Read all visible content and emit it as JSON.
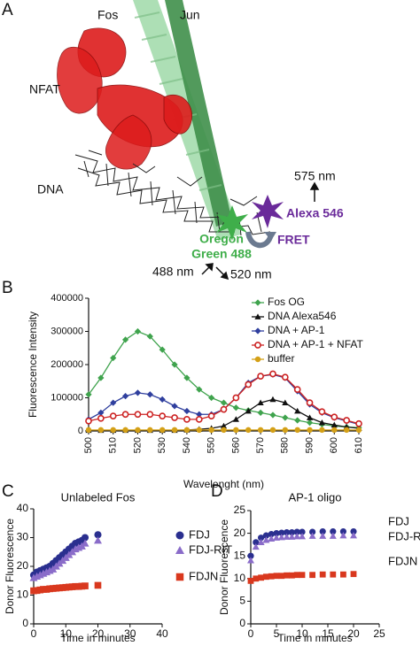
{
  "panel_labels": [
    "A",
    "B",
    "C",
    "D"
  ],
  "panel_a": {
    "fos": "Fos",
    "jun": "Jun",
    "nfat": "NFAT",
    "dna": "DNA",
    "emission_acceptor": "575 nm",
    "acceptor": "Alexa 546",
    "donor_line1": "Oregon",
    "donor_line2": "Green 488",
    "fret": "FRET",
    "excitation": "488 nm",
    "emission_donor": "520 nm"
  },
  "chart_data": [
    {
      "type": "line",
      "xlabel": "Wavelenght (nm)",
      "ylabel": "Fluorescence Intensity",
      "x": [
        500,
        505,
        510,
        515,
        520,
        525,
        530,
        535,
        540,
        545,
        550,
        555,
        560,
        565,
        570,
        575,
        580,
        585,
        590,
        595,
        600,
        605,
        610
      ],
      "xlim": [
        500,
        610
      ],
      "xticks": [
        500,
        510,
        520,
        530,
        540,
        550,
        560,
        570,
        580,
        590,
        600,
        610
      ],
      "ylim": [
        0,
        400000
      ],
      "yticks": [
        0,
        100000,
        200000,
        300000,
        400000
      ],
      "legend": "upper-right",
      "series": [
        {
          "name": "Fos OG",
          "color": "#3fa34d",
          "marker": "diamond",
          "values": [
            110000,
            160000,
            220000,
            275000,
            300000,
            285000,
            245000,
            200000,
            160000,
            125000,
            100000,
            85000,
            70000,
            62000,
            55000,
            48000,
            40000,
            32000,
            25000,
            20000,
            15000,
            12000,
            10000
          ]
        },
        {
          "name": "DNA Alexa546",
          "color": "#111111",
          "marker": "triangle",
          "values": [
            2000,
            2000,
            2000,
            2000,
            2000,
            2000,
            2000,
            2000,
            3000,
            5000,
            8000,
            15000,
            35000,
            60000,
            85000,
            95000,
            85000,
            60000,
            40000,
            25000,
            18000,
            12000,
            8000
          ]
        },
        {
          "name": "DNA + AP-1",
          "color": "#2f3f9e",
          "marker": "diamond",
          "values": [
            35000,
            55000,
            85000,
            105000,
            115000,
            110000,
            95000,
            75000,
            60000,
            50000,
            50000,
            65000,
            100000,
            145000,
            165000,
            170000,
            160000,
            120000,
            80000,
            55000,
            40000,
            30000,
            20000
          ]
        },
        {
          "name": "DNA + AP-1 + NFAT",
          "color": "#cc2222",
          "marker": "circle-open",
          "values": [
            30000,
            38000,
            45000,
            50000,
            50000,
            50000,
            45000,
            40000,
            35000,
            35000,
            45000,
            65000,
            100000,
            140000,
            165000,
            172000,
            162000,
            125000,
            85000,
            58000,
            42000,
            32000,
            22000
          ]
        },
        {
          "name": "buffer",
          "color": "#d4a017",
          "marker": "circle",
          "values": [
            3000,
            3000,
            3000,
            3000,
            3000,
            3000,
            3000,
            3000,
            3000,
            3000,
            3000,
            3000,
            3000,
            3000,
            3000,
            3000,
            3000,
            3000,
            3000,
            3000,
            3000,
            3000,
            3000
          ]
        }
      ]
    },
    {
      "type": "scatter",
      "title": "Unlabeled Fos",
      "xlabel": "Time in minutes",
      "ylabel": "Donor Fluorescence",
      "x": [
        0,
        1,
        2,
        3,
        4,
        5,
        6,
        7,
        8,
        9,
        10,
        11,
        12,
        13,
        14,
        15,
        16,
        20
      ],
      "xlim": [
        0,
        40
      ],
      "xticks": [
        0,
        10,
        20,
        30,
        40
      ],
      "ylim": [
        0,
        40
      ],
      "yticks": [
        0,
        10,
        20,
        30,
        40
      ],
      "legend": "outside-right",
      "legend_markers": true,
      "series": [
        {
          "name": "FDJ",
          "color": "#2a2f8f",
          "marker": "circle",
          "values": [
            17,
            18,
            18.5,
            19,
            19.5,
            20,
            21,
            22,
            23,
            24,
            25,
            26,
            27,
            28,
            28.5,
            29,
            30,
            31
          ]
        },
        {
          "name": "FDJ-RIT",
          "color": "#8a6cc9",
          "marker": "triangle",
          "values": [
            16,
            16.5,
            17,
            17.5,
            18,
            18.5,
            19,
            20,
            21,
            22,
            23,
            24,
            25,
            26,
            26.5,
            27,
            28,
            29
          ]
        },
        {
          "name": "FDJN",
          "color": "#d9381e",
          "marker": "square",
          "values": [
            11.5,
            11.6,
            11.8,
            12,
            12,
            12.2,
            12.3,
            12.4,
            12.5,
            12.6,
            12.7,
            12.8,
            12.9,
            13,
            13,
            13.1,
            13.2,
            13.4
          ]
        }
      ]
    },
    {
      "type": "scatter",
      "title": "AP-1 oligo",
      "xlabel": "Time in minutes",
      "ylabel": "Donor Fluorescence",
      "x": [
        0,
        1,
        2,
        3,
        4,
        5,
        6,
        7,
        8,
        9,
        10,
        12,
        14,
        16,
        18,
        20
      ],
      "xlim": [
        0,
        25
      ],
      "xticks": [
        0,
        5,
        10,
        15,
        20,
        25
      ],
      "ylim": [
        0,
        25
      ],
      "yticks": [
        0,
        5,
        10,
        15,
        20,
        25
      ],
      "legend": "outside-right",
      "legend_markers": false,
      "series": [
        {
          "name": "FDJ",
          "color": "#2a2f8f",
          "marker": "circle",
          "values": [
            15,
            18,
            19,
            19.5,
            19.8,
            20,
            20.1,
            20.2,
            20.2,
            20.3,
            20.3,
            20.3,
            20.4,
            20.4,
            20.4,
            20.4
          ]
        },
        {
          "name": "FDJ-RIT",
          "color": "#8a6cc9",
          "marker": "triangle",
          "values": [
            14,
            17,
            18,
            18.5,
            18.8,
            19,
            19.1,
            19.2,
            19.2,
            19.3,
            19.3,
            19.4,
            19.4,
            19.4,
            19.5,
            19.5
          ]
        },
        {
          "name": "FDJN",
          "color": "#d9381e",
          "marker": "square",
          "values": [
            9.5,
            10,
            10.2,
            10.4,
            10.5,
            10.6,
            10.6,
            10.7,
            10.7,
            10.8,
            10.8,
            10.8,
            10.9,
            10.9,
            10.9,
            11
          ]
        }
      ]
    }
  ]
}
